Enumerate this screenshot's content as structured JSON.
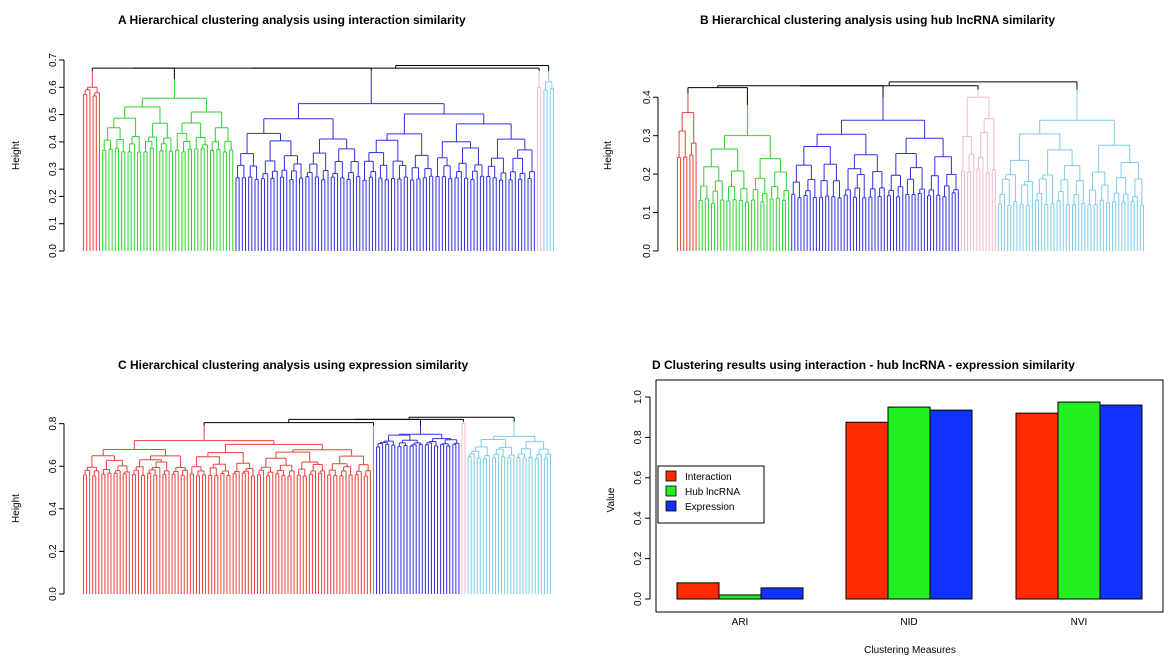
{
  "colors": {
    "red": "#e8403a",
    "green": "#2ed32e",
    "blue": "#3030dd",
    "pink": "#f5b8c8",
    "lightblue": "#7ecbea",
    "black": "#000000",
    "bar_red": "#ff2a00",
    "bar_green": "#22ee22",
    "bar_blue": "#1133ff"
  },
  "panels": {
    "A": {
      "title": "A  Hierarchical clustering analysis using interaction similarity",
      "ylabel": "Height",
      "ylim": [
        0,
        0.7
      ],
      "ticks": [
        "0.0",
        "0.1",
        "0.2",
        "0.3",
        "0.4",
        "0.5",
        "0.6",
        "0.7"
      ]
    },
    "B": {
      "title": "B  Hierarchical clustering analysis using hub lncRNA similarity",
      "ylabel": "Height",
      "ylim": [
        0,
        0.45
      ],
      "ticks": [
        "0.0",
        "0.1",
        "0.2",
        "0.3",
        "0.4"
      ]
    },
    "C": {
      "title": "C  Hierarchical clustering analysis using expression similarity",
      "ylabel": "Height",
      "ylim": [
        0,
        0.85
      ],
      "ticks": [
        "0.0",
        "0.2",
        "0.4",
        "0.6",
        "0.8"
      ]
    },
    "D": {
      "title": "D   Clustering results using interaction - hub lncRNA - expression similarity"
    }
  },
  "chart_data": [
    {
      "type": "dendrogram",
      "panel": "A",
      "title": "A  Hierarchical clustering analysis using interaction similarity",
      "ylabel": "Height",
      "ylim": [
        0,
        0.7
      ],
      "root_height": 0.68,
      "clusters": [
        {
          "color": "red",
          "leaves": 6,
          "top": 0.66,
          "base_min": 0.52,
          "base_max": 0.6
        },
        {
          "color": "green",
          "leaves": 42,
          "top": 0.63,
          "base_min": 0.28,
          "base_max": 0.56
        },
        {
          "color": "blue",
          "leaves": 95,
          "top": 0.66,
          "base_min": 0.17,
          "base_max": 0.54
        },
        {
          "color": "pink",
          "leaves": 2,
          "top": 0.66,
          "base_min": 0.5,
          "base_max": 0.6
        },
        {
          "color": "lightblue",
          "leaves": 4,
          "top": 0.66,
          "base_min": 0.5,
          "base_max": 0.62
        }
      ]
    },
    {
      "type": "dendrogram",
      "panel": "B",
      "title": "B  Hierarchical clustering analysis using hub lncRNA similarity",
      "ylabel": "Height",
      "ylim": [
        0,
        0.45
      ],
      "root_height": 0.44,
      "clusters": [
        {
          "color": "red",
          "leaves": 7,
          "top": 0.41,
          "base_min": 0.1,
          "base_max": 0.36
        },
        {
          "color": "green",
          "leaves": 30,
          "top": 0.38,
          "base_min": 0.04,
          "base_max": 0.3
        },
        {
          "color": "blue",
          "leaves": 55,
          "top": 0.4,
          "base_min": 0.06,
          "base_max": 0.34
        },
        {
          "color": "pink",
          "leaves": 12,
          "top": 0.42,
          "base_min": 0.05,
          "base_max": 0.4
        },
        {
          "color": "lightblue",
          "leaves": 48,
          "top": 0.42,
          "base_min": 0.03,
          "base_max": 0.34
        }
      ]
    },
    {
      "type": "dendrogram",
      "panel": "C",
      "title": "C  Hierarchical clustering analysis using expression similarity",
      "ylabel": "Height",
      "ylim": [
        0,
        0.85
      ],
      "root_height": 0.83,
      "clusters": [
        {
          "color": "red",
          "leaves": 95,
          "top": 0.79,
          "base_min": 0.5,
          "base_max": 0.72
        },
        {
          "color": "green",
          "leaves": 1,
          "top": 0.79,
          "base_min": 0.76,
          "base_max": 0.77
        },
        {
          "color": "blue",
          "leaves": 28,
          "top": 0.79,
          "base_min": 0.66,
          "base_max": 0.75
        },
        {
          "color": "pink",
          "leaves": 2,
          "top": 0.81,
          "base_min": 0.7,
          "base_max": 0.8
        },
        {
          "color": "lightblue",
          "leaves": 28,
          "top": 0.81,
          "base_min": 0.58,
          "base_max": 0.74
        }
      ]
    },
    {
      "type": "bar",
      "panel": "D",
      "title": "D   Clustering results using interaction - hub lncRNA - expression similarity",
      "xlabel": "Clustering Measures",
      "ylabel": "Value",
      "ylim": [
        0,
        1.0
      ],
      "yticks": [
        "0.0",
        "0.2",
        "0.4",
        "0.6",
        "0.8",
        "1.0"
      ],
      "categories": [
        "ARI",
        "NID",
        "NVI"
      ],
      "series": [
        {
          "name": "Interaction",
          "color": "bar_red",
          "values": [
            0.08,
            0.875,
            0.92
          ]
        },
        {
          "name": "Hub lncRNA",
          "color": "bar_green",
          "values": [
            0.02,
            0.95,
            0.975
          ]
        },
        {
          "name": "Expression",
          "color": "bar_blue",
          "values": [
            0.055,
            0.935,
            0.96
          ]
        }
      ],
      "legend_position": "left"
    }
  ]
}
